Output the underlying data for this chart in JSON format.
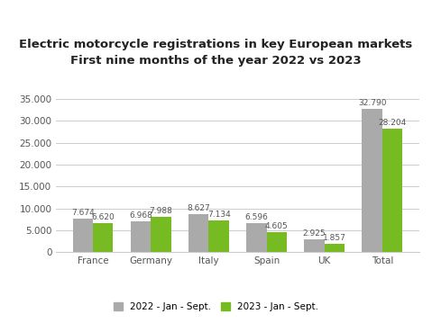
{
  "title_line1": "Electric motorcycle registrations in key European markets",
  "title_line2": "First nine months of the year 2022 vs 2023",
  "categories": [
    "France",
    "Germany",
    "Italy",
    "Spain",
    "UK",
    "Total"
  ],
  "values_2022": [
    7674,
    6968,
    8627,
    6596,
    2925,
    32790
  ],
  "values_2023": [
    6620,
    7988,
    7134,
    4605,
    1857,
    28204
  ],
  "labels_2022": [
    "7.674",
    "6.968",
    "8.627",
    "6.596",
    "2.925",
    "32.790"
  ],
  "labels_2023": [
    "6.620",
    "7.988",
    "7.134",
    "4.605",
    "1.857",
    "28.204"
  ],
  "color_2022": "#aaaaaa",
  "color_2023": "#77bb22",
  "legend_2022": "2022 - Jan - Sept.",
  "legend_2023": "2023 - Jan - Sept.",
  "ylim": [
    0,
    37000
  ],
  "yticks": [
    0,
    5000,
    10000,
    15000,
    20000,
    25000,
    30000,
    35000
  ],
  "ytick_labels": [
    "0",
    "5.000",
    "10.000",
    "15.000",
    "20.000",
    "25.000",
    "30.000",
    "35.000"
  ],
  "background_color": "#ffffff",
  "grid_color": "#cccccc",
  "bar_width": 0.35,
  "title_fontsize": 9.5,
  "label_fontsize": 6.5,
  "tick_fontsize": 7.5,
  "legend_fontsize": 7.5
}
